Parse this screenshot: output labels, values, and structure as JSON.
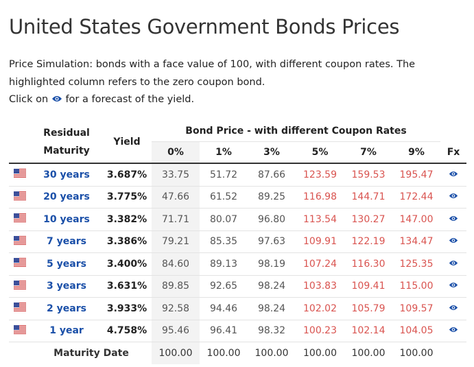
{
  "header": {
    "title": "United States Government Bonds Prices"
  },
  "intro": {
    "line1": "Price Simulation: bonds with a face value of 100, with different coupon rates. The highlighted column refers to the zero coupon bond.",
    "click_before": "Click on",
    "click_after": "for a forecast of the yield."
  },
  "table": {
    "columns": {
      "maturity": "Residual Maturity",
      "yield": "Yield",
      "group": "Bond Price - with different Coupon Rates",
      "coupons": [
        "0%",
        "1%",
        "3%",
        "5%",
        "7%",
        "9%"
      ],
      "fx": "Fx"
    },
    "rows": [
      {
        "maturity": "30 years",
        "yield": "3.687%",
        "prices": [
          "33.75",
          "51.72",
          "87.66",
          "123.59",
          "159.53",
          "195.47"
        ]
      },
      {
        "maturity": "20 years",
        "yield": "3.775%",
        "prices": [
          "47.66",
          "61.52",
          "89.25",
          "116.98",
          "144.71",
          "172.44"
        ]
      },
      {
        "maturity": "10 years",
        "yield": "3.382%",
        "prices": [
          "71.71",
          "80.07",
          "96.80",
          "113.54",
          "130.27",
          "147.00"
        ]
      },
      {
        "maturity": "7 years",
        "yield": "3.386%",
        "prices": [
          "79.21",
          "85.35",
          "97.63",
          "109.91",
          "122.19",
          "134.47"
        ]
      },
      {
        "maturity": "5 years",
        "yield": "3.400%",
        "prices": [
          "84.60",
          "89.13",
          "98.19",
          "107.24",
          "116.30",
          "125.35"
        ]
      },
      {
        "maturity": "3 years",
        "yield": "3.631%",
        "prices": [
          "89.85",
          "92.65",
          "98.24",
          "103.83",
          "109.41",
          "115.00"
        ]
      },
      {
        "maturity": "2 years",
        "yield": "3.933%",
        "prices": [
          "92.58",
          "94.46",
          "98.24",
          "102.02",
          "105.79",
          "109.57"
        ]
      },
      {
        "maturity": "1 year",
        "yield": "4.758%",
        "prices": [
          "95.46",
          "96.41",
          "98.32",
          "100.23",
          "102.14",
          "104.05"
        ]
      }
    ],
    "footer": {
      "label": "Maturity Date",
      "prices": [
        "100.00",
        "100.00",
        "100.00",
        "100.00",
        "100.00",
        "100.00"
      ]
    }
  }
}
